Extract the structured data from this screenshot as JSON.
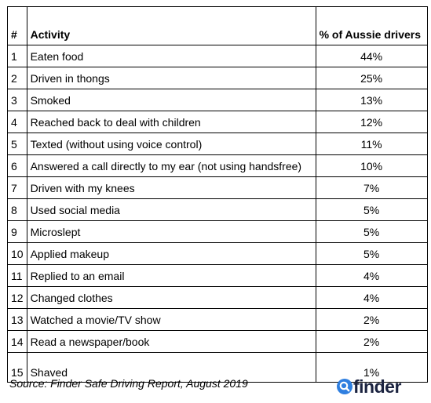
{
  "table": {
    "headers": [
      "#",
      "Activity",
      "% of Aussie drivers"
    ],
    "rows": [
      {
        "num": "1",
        "activity": "Eaten food",
        "pct": "44%"
      },
      {
        "num": "2",
        "activity": "Driven in thongs",
        "pct": "25%"
      },
      {
        "num": "3",
        "activity": "Smoked",
        "pct": "13%"
      },
      {
        "num": "4",
        "activity": "Reached back to deal with children",
        "pct": "12%"
      },
      {
        "num": "5",
        "activity": "Texted (without using voice control)",
        "pct": "11%"
      },
      {
        "num": "6",
        "activity": "Answered a call directly to my ear (not using handsfree)",
        "pct": "10%"
      },
      {
        "num": "7",
        "activity": "Driven with my knees",
        "pct": "7%"
      },
      {
        "num": "8",
        "activity": "Used social media",
        "pct": "5%"
      },
      {
        "num": "9",
        "activity": "Microslept",
        "pct": "5%"
      },
      {
        "num": "10",
        "activity": "Applied makeup",
        "pct": "5%"
      },
      {
        "num": "11",
        "activity": "Replied to an email",
        "pct": "4%"
      },
      {
        "num": "12",
        "activity": "Changed clothes",
        "pct": "4%"
      },
      {
        "num": "13",
        "activity": "Watched a movie/TV show",
        "pct": "2%"
      },
      {
        "num": "14",
        "activity": "Read a newspaper/book",
        "pct": "2%"
      },
      {
        "num": "15",
        "activity": "Shaved",
        "pct": "1%"
      }
    ]
  },
  "footer": {
    "source": "Source: Finder Safe Driving Report, August 2019",
    "brand": "finder",
    "brand_icon": "magnifier-icon",
    "brand_color": "#1b2340",
    "icon_color": "#2f7fe0"
  }
}
